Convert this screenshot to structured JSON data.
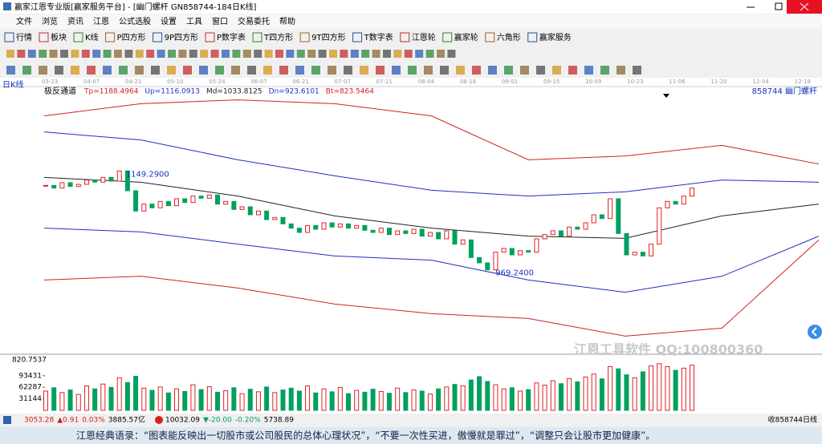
{
  "window": {
    "title": "赢家江恩专业版[赢家服务平台] - [幽门螺杆  GN858744-184日K线]"
  },
  "menu": [
    "文件",
    "浏览",
    "资讯",
    "江恩",
    "公式选股",
    "设置",
    "工具",
    "窗口",
    "交易委托",
    "帮助"
  ],
  "toolbar": [
    "行情",
    "板块",
    "K线",
    "P四方形",
    "9P四方形",
    "P数字表",
    "T四方形",
    "9T四方形",
    "T数字表",
    "江恩轮",
    "赢家轮",
    "六角形",
    "赢家服务"
  ],
  "chart_data": {
    "type": "candlestick",
    "period_label": "日K线",
    "x": [
      "03-23",
      "04-07",
      "04-21",
      "05-10",
      "05-24",
      "06-07",
      "06-21",
      "07-07",
      "07-21",
      "08-04",
      "08-18",
      "09-01",
      "09-15",
      "10-09",
      "10-23",
      "11-06",
      "11-20",
      "12-04",
      "12-18"
    ],
    "indicator": "极反通道",
    "params": [
      "Tp=1188.4964",
      "Up=1116.0913",
      "Md=1033.8125",
      "Dn=923.6101",
      "Bt=823.5464"
    ],
    "code_label": "858744 幽门螺杆",
    "high_label": "1149.2900",
    "low_label": "969.2400",
    "ylim": [
      832,
      1297
    ],
    "closes": [
      1130,
      1125,
      1135,
      1128,
      1132,
      1140,
      1136,
      1145,
      1138,
      1157,
      1120,
      1082,
      1095,
      1088,
      1100,
      1092,
      1105,
      1098,
      1110,
      1106,
      1112,
      1095,
      1100,
      1085,
      1090,
      1075,
      1082,
      1066,
      1070,
      1058,
      1050,
      1042,
      1055,
      1048,
      1060,
      1052,
      1058,
      1050,
      1055,
      1046,
      1042,
      1050,
      1038,
      1045,
      1040,
      1048,
      1035,
      1042,
      1030,
      1045,
      1020,
      1028,
      995,
      985,
      972,
      1005,
      1012,
      1000,
      1008,
      1005,
      1030,
      1038,
      1045,
      1035,
      1052,
      1048,
      1060,
      1075,
      1068,
      1105,
      1040,
      1000,
      1005,
      998,
      1020,
      1088,
      1100,
      1095,
      1110,
      1125
    ],
    "bands": [
      {
        "name": "Tp",
        "color": "#d02020",
        "values": [
          1260,
          1283,
          1290,
          1283,
          1260,
          1178,
          1185,
          1205,
          1170
        ]
      },
      {
        "name": "Up",
        "color": "#2030c0",
        "values": [
          1230,
          1215,
          1178,
          1148,
          1121,
          1110,
          1118,
          1140,
          1136
        ]
      },
      {
        "name": "Md",
        "color": "#202020",
        "values": [
          1145,
          1136,
          1110,
          1073,
          1050,
          1035,
          1031,
          1073,
          1095
        ]
      },
      {
        "name": "Dn",
        "color": "#2030c0",
        "values": [
          1050,
          1043,
          1020,
          998,
          990,
          953,
          930,
          960,
          1035
        ]
      },
      {
        "name": "Bt",
        "color": "#d02020",
        "values": [
          953,
          960,
          938,
          908,
          890,
          881,
          848,
          863,
          1028
        ]
      }
    ],
    "volume": {
      "label": "820.7537",
      "ylim": [
        0,
        145000
      ],
      "yticks": [
        93431,
        62287,
        31144
      ],
      "values": [
        52000,
        61000,
        48000,
        55000,
        43000,
        66000,
        58000,
        71000,
        62000,
        88000,
        75000,
        92000,
        60000,
        54000,
        63000,
        47000,
        58000,
        51000,
        69000,
        56000,
        64000,
        49000,
        53000,
        61000,
        45000,
        57000,
        50000,
        63000,
        48000,
        55000,
        60000,
        52000,
        66000,
        47000,
        58000,
        50000,
        62000,
        45000,
        54000,
        49000,
        57000,
        51000,
        46000,
        60000,
        48000,
        55000,
        52000,
        44000,
        58000,
        63000,
        70000,
        66000,
        82000,
        91000,
        78000,
        69000,
        58000,
        61000,
        52000,
        56000,
        74000,
        68000,
        80000,
        72000,
        86000,
        77000,
        90000,
        98000,
        85000,
        118000,
        112000,
        96000,
        88000,
        104000,
        120000,
        126000,
        118000,
        108000,
        114000,
        122000
      ]
    }
  },
  "watermark": "江恩工具软件  QQ:100800360",
  "status": {
    "index1": [
      "3053.28",
      "▲0.91",
      "0.03%",
      "3885.57亿"
    ],
    "index2": [
      "10032.09",
      "▼-20.00",
      "-0.20%",
      "5738.89"
    ],
    "right": "收858744日线"
  },
  "banner": "江恩经典语录：“图表能反映出一切股市或公司股民的总体心理状况”，“不要一次性买进，傲慢就是罪过”，“调整只会让股市更加健康”。"
}
